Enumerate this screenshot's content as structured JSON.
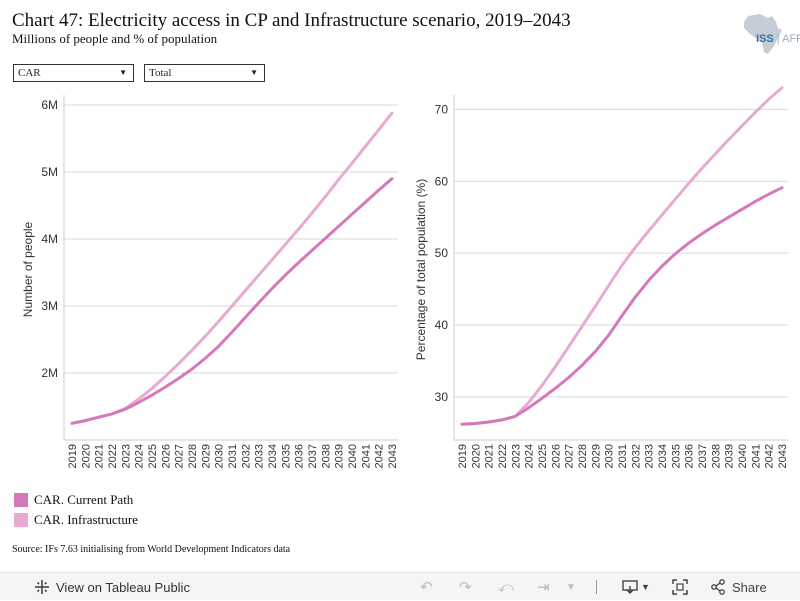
{
  "header": {
    "title": "Chart 47: Electricity access in CP and Infrastructure scenario, 2019–2043",
    "subtitle": "Millions of people and % of population",
    "logo_text": "ISS",
    "logo_suffix": "AFRICA"
  },
  "filters": {
    "country": "CAR",
    "group": "Total"
  },
  "colors": {
    "current_path": "#d47ab8",
    "infrastructure": "#e8a9d3",
    "gridline": "#d9d9d9"
  },
  "chart_data": [
    {
      "type": "line",
      "x": [
        "2019",
        "2020",
        "2021",
        "2022",
        "2023",
        "2024",
        "2025",
        "2026",
        "2027",
        "2028",
        "2029",
        "2030",
        "2031",
        "2032",
        "2033",
        "2034",
        "2035",
        "2036",
        "2037",
        "2038",
        "2039",
        "2040",
        "2041",
        "2042",
        "2043"
      ],
      "ylabel": "Number of people",
      "yticks": [
        2000000,
        3000000,
        4000000,
        5000000,
        6000000
      ],
      "ytick_labels": [
        "2M",
        "3M",
        "4M",
        "5M",
        "6M"
      ],
      "ylim": [
        1000000,
        6150000
      ],
      "grid": true,
      "series": [
        {
          "name": "CAR. Current Path",
          "values": [
            1250000,
            1290000,
            1340000,
            1390000,
            1460000,
            1560000,
            1670000,
            1790000,
            1920000,
            2060000,
            2220000,
            2400000,
            2610000,
            2830000,
            3050000,
            3260000,
            3460000,
            3650000,
            3830000,
            4010000,
            4190000,
            4370000,
            4550000,
            4730000,
            4900000
          ]
        },
        {
          "name": "CAR. Infrastructure",
          "values": [
            1250000,
            1290000,
            1340000,
            1390000,
            1470000,
            1610000,
            1770000,
            1950000,
            2140000,
            2340000,
            2550000,
            2770000,
            3000000,
            3230000,
            3460000,
            3690000,
            3920000,
            4150000,
            4390000,
            4630000,
            4890000,
            5130000,
            5380000,
            5630000,
            5880000
          ]
        }
      ]
    },
    {
      "type": "line",
      "x": [
        "2019",
        "2020",
        "2021",
        "2022",
        "2023",
        "2024",
        "2025",
        "2026",
        "2027",
        "2028",
        "2029",
        "2030",
        "2031",
        "2032",
        "2033",
        "2034",
        "2035",
        "2036",
        "2037",
        "2038",
        "2039",
        "2040",
        "2041",
        "2042",
        "2043"
      ],
      "ylabel": "Percentage of total population (%)",
      "yticks": [
        30,
        40,
        50,
        60,
        70
      ],
      "ytick_labels": [
        "30",
        "40",
        "50",
        "60",
        "70"
      ],
      "ylim": [
        24,
        72
      ],
      "grid": true,
      "series": [
        {
          "name": "CAR. Current Path",
          "values": [
            26.2,
            26.3,
            26.5,
            26.8,
            27.3,
            28.5,
            29.8,
            31.2,
            32.7,
            34.4,
            36.3,
            38.6,
            41.3,
            43.9,
            46.2,
            48.2,
            49.9,
            51.4,
            52.7,
            53.9,
            55.0,
            56.1,
            57.2,
            58.2,
            59.1
          ]
        },
        {
          "name": "CAR. Infrastructure",
          "values": [
            26.2,
            26.3,
            26.5,
            26.8,
            27.3,
            29.2,
            31.6,
            34.2,
            37.0,
            39.8,
            42.6,
            45.5,
            48.3,
            50.8,
            53.1,
            55.3,
            57.5,
            59.7,
            61.8,
            63.8,
            65.8,
            67.7,
            69.6,
            71.4,
            73.0
          ]
        }
      ]
    }
  ],
  "legend": [
    {
      "label": "CAR. Current Path"
    },
    {
      "label": "CAR. Infrastructure"
    }
  ],
  "source": "Source: IFs 7.63 initialising from World Development Indicators data",
  "toolbar": {
    "view_label": "View on Tableau Public",
    "share_label": "Share"
  }
}
